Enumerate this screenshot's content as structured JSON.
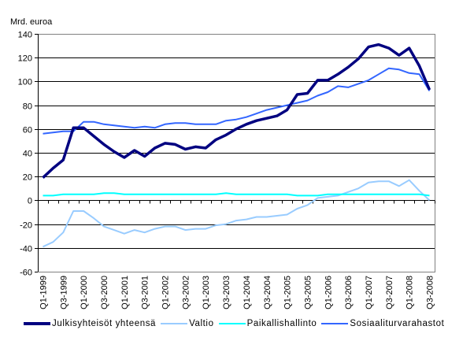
{
  "chart_data": {
    "type": "line",
    "ylabel": "Mrd. euroa",
    "ylim": [
      -60,
      140
    ],
    "yticks": [
      -60,
      -40,
      -20,
      0,
      20,
      40,
      60,
      80,
      100,
      120,
      140
    ],
    "grid": true,
    "legend_position": "bottom",
    "x": [
      "Q1-1999",
      "Q2-1999",
      "Q3-1999",
      "Q4-1999",
      "Q1-2000",
      "Q2-2000",
      "Q3-2000",
      "Q4-2000",
      "Q1-2001",
      "Q2-2001",
      "Q3-2001",
      "Q4-2001",
      "Q1-2002",
      "Q2-2002",
      "Q3-2002",
      "Q4-2002",
      "Q1-2003",
      "Q2-2003",
      "Q3-2003",
      "Q4-2003",
      "Q1-2004",
      "Q2-2004",
      "Q3-2004",
      "Q4-2004",
      "Q1-2005",
      "Q2-2005",
      "Q3-2005",
      "Q4-2005",
      "Q1-2006",
      "Q2-2006",
      "Q3-2006",
      "Q4-2006",
      "Q1-2007",
      "Q2-2007",
      "Q3-2007",
      "Q4-2007",
      "Q1-2008",
      "Q2-2008",
      "Q3-2008"
    ],
    "xtick_labels": [
      "Q1-1999",
      "Q3-1999",
      "Q1-2000",
      "Q3-2000",
      "Q1-2001",
      "Q3-2001",
      "Q1-2002",
      "Q3-2002",
      "Q1-2003",
      "Q3-2003",
      "Q1-2004",
      "Q3-2004",
      "Q1-2005",
      "Q3-2005",
      "Q1-2006",
      "Q3-2006",
      "Q1-2007",
      "Q3-2007",
      "Q1-2008",
      "Q3-2008"
    ],
    "series": [
      {
        "name": "Julkisyhteisöt yhteensä",
        "color": "#000080",
        "values": [
          19,
          27,
          34,
          61,
          61,
          54,
          47,
          41,
          36,
          42,
          37,
          44,
          48,
          47,
          43,
          45,
          44,
          51,
          55,
          60,
          64,
          67,
          69,
          71,
          76,
          89,
          90,
          101,
          101,
          106,
          112,
          119,
          129,
          131,
          128,
          122,
          128,
          113,
          93
        ]
      },
      {
        "name": "Valtio",
        "color": "#99ccff",
        "values": [
          -39,
          -35,
          -27,
          -9,
          -9,
          -15,
          -22,
          -25,
          -28,
          -25,
          -27,
          -24,
          -22,
          -22,
          -25,
          -24,
          -24,
          -21,
          -20,
          -17,
          -16,
          -14,
          -14,
          -13,
          -12,
          -7,
          -4,
          2,
          3,
          4,
          7,
          10,
          15,
          16,
          16,
          12,
          17,
          8,
          0
        ]
      },
      {
        "name": "Paikallishallinto",
        "color": "#00ffff",
        "values": [
          4,
          4,
          5,
          5,
          5,
          5,
          6,
          6,
          5,
          5,
          5,
          5,
          5,
          5,
          5,
          5,
          5,
          5,
          6,
          5,
          5,
          5,
          5,
          5,
          5,
          4,
          4,
          4,
          5,
          5,
          5,
          5,
          5,
          5,
          5,
          5,
          5,
          5,
          4
        ]
      },
      {
        "name": "Sosiaaliturvarahastot",
        "color": "#3366ff",
        "values": [
          56,
          57,
          58,
          58,
          66,
          66,
          64,
          63,
          62,
          61,
          62,
          61,
          64,
          65,
          65,
          64,
          64,
          64,
          67,
          68,
          70,
          73,
          76,
          78,
          80,
          82,
          84,
          88,
          91,
          96,
          95,
          98,
          101,
          106,
          111,
          110,
          107,
          106,
          92
        ]
      }
    ]
  }
}
